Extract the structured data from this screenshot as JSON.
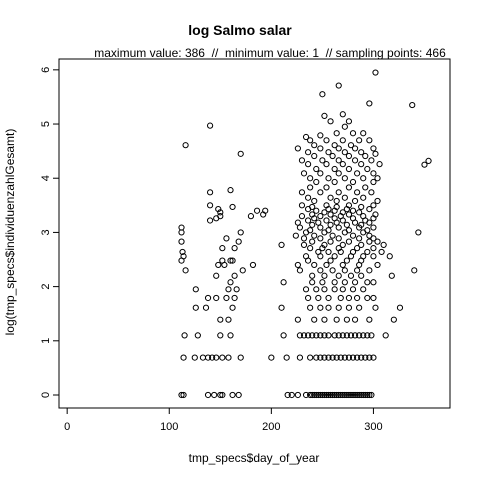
{
  "chart_data": {
    "type": "scatter",
    "title": "log Salmo salar",
    "subtitle": "maximum value: 386  //  minimum value: 1  // sampling points: 466",
    "xlabel": "tmp_specs$day_of_year",
    "ylabel": "log(tmp_specs$individuenzahlGesamt)",
    "xlim": [
      -8,
      375
    ],
    "ylim": [
      -0.24,
      6.2
    ],
    "x_ticks": [
      0,
      100,
      200,
      300
    ],
    "y_ticks": [
      0,
      1,
      2,
      3,
      4,
      5,
      6
    ],
    "grid": false,
    "marker": "open-circle",
    "color": "#000000",
    "points": [
      [
        112,
        0
      ],
      [
        114,
        0
      ],
      [
        138,
        0
      ],
      [
        144,
        0
      ],
      [
        150,
        0
      ],
      [
        152,
        0
      ],
      [
        162,
        0
      ],
      [
        168,
        0
      ],
      [
        216,
        0
      ],
      [
        220,
        0
      ],
      [
        226,
        0
      ],
      [
        234,
        0
      ],
      [
        238,
        0
      ],
      [
        240,
        0
      ],
      [
        242,
        0
      ],
      [
        244,
        0
      ],
      [
        246,
        0
      ],
      [
        248,
        0
      ],
      [
        250,
        0
      ],
      [
        252,
        0
      ],
      [
        254,
        0
      ],
      [
        256,
        0
      ],
      [
        258,
        0
      ],
      [
        260,
        0
      ],
      [
        262,
        0
      ],
      [
        264,
        0
      ],
      [
        266,
        0
      ],
      [
        268,
        0
      ],
      [
        270,
        0
      ],
      [
        272,
        0
      ],
      [
        274,
        0
      ],
      [
        276,
        0
      ],
      [
        278,
        0
      ],
      [
        280,
        0
      ],
      [
        282,
        0
      ],
      [
        284,
        0
      ],
      [
        286,
        0
      ],
      [
        288,
        0
      ],
      [
        290,
        0
      ],
      [
        292,
        0
      ],
      [
        294,
        0
      ],
      [
        296,
        0
      ],
      [
        298,
        0
      ],
      [
        114,
        0.69
      ],
      [
        125,
        0.69
      ],
      [
        133,
        0.69
      ],
      [
        138,
        0.69
      ],
      [
        142,
        0.69
      ],
      [
        146,
        0.69
      ],
      [
        152,
        0.69
      ],
      [
        158,
        0.69
      ],
      [
        170,
        0.69
      ],
      [
        200,
        0.69
      ],
      [
        215,
        0.69
      ],
      [
        228,
        0.69
      ],
      [
        238,
        0.69
      ],
      [
        244,
        0.69
      ],
      [
        248,
        0.69
      ],
      [
        252,
        0.69
      ],
      [
        256,
        0.69
      ],
      [
        260,
        0.69
      ],
      [
        264,
        0.69
      ],
      [
        268,
        0.69
      ],
      [
        272,
        0.69
      ],
      [
        276,
        0.69
      ],
      [
        280,
        0.69
      ],
      [
        284,
        0.69
      ],
      [
        288,
        0.69
      ],
      [
        292,
        0.69
      ],
      [
        296,
        0.69
      ],
      [
        300,
        0.69
      ],
      [
        115,
        1.1
      ],
      [
        128,
        1.1
      ],
      [
        150,
        1.1
      ],
      [
        160,
        1.1
      ],
      [
        212,
        1.1
      ],
      [
        228,
        1.1
      ],
      [
        232,
        1.1
      ],
      [
        236,
        1.1
      ],
      [
        240,
        1.1
      ],
      [
        244,
        1.1
      ],
      [
        248,
        1.1
      ],
      [
        252,
        1.1
      ],
      [
        256,
        1.1
      ],
      [
        262,
        1.1
      ],
      [
        266,
        1.1
      ],
      [
        270,
        1.1
      ],
      [
        274,
        1.1
      ],
      [
        278,
        1.1
      ],
      [
        282,
        1.1
      ],
      [
        286,
        1.1
      ],
      [
        290,
        1.1
      ],
      [
        294,
        1.1
      ],
      [
        298,
        1.1
      ],
      [
        312,
        1.1
      ],
      [
        150,
        1.39
      ],
      [
        158,
        1.39
      ],
      [
        226,
        1.39
      ],
      [
        242,
        1.39
      ],
      [
        252,
        1.39
      ],
      [
        264,
        1.39
      ],
      [
        274,
        1.39
      ],
      [
        282,
        1.39
      ],
      [
        296,
        1.39
      ],
      [
        320,
        1.39
      ],
      [
        126,
        1.61
      ],
      [
        136,
        1.61
      ],
      [
        162,
        1.61
      ],
      [
        210,
        1.61
      ],
      [
        238,
        1.61
      ],
      [
        248,
        1.61
      ],
      [
        256,
        1.61
      ],
      [
        266,
        1.61
      ],
      [
        276,
        1.61
      ],
      [
        286,
        1.61
      ],
      [
        302,
        1.61
      ],
      [
        326,
        1.61
      ],
      [
        138,
        1.79
      ],
      [
        146,
        1.79
      ],
      [
        156,
        1.79
      ],
      [
        164,
        1.79
      ],
      [
        236,
        1.79
      ],
      [
        246,
        1.79
      ],
      [
        256,
        1.79
      ],
      [
        268,
        1.79
      ],
      [
        276,
        1.79
      ],
      [
        284,
        1.79
      ],
      [
        294,
        1.79
      ],
      [
        300,
        1.79
      ],
      [
        126,
        1.95
      ],
      [
        158,
        1.95
      ],
      [
        166,
        1.95
      ],
      [
        234,
        1.95
      ],
      [
        244,
        1.95
      ],
      [
        252,
        1.95
      ],
      [
        262,
        1.95
      ],
      [
        270,
        1.95
      ],
      [
        280,
        1.95
      ],
      [
        290,
        1.95
      ],
      [
        160,
        2.08
      ],
      [
        212,
        2.08
      ],
      [
        240,
        2.08
      ],
      [
        250,
        2.08
      ],
      [
        262,
        2.08
      ],
      [
        272,
        2.08
      ],
      [
        282,
        2.08
      ],
      [
        294,
        2.08
      ],
      [
        300,
        2.08
      ],
      [
        146,
        2.2
      ],
      [
        164,
        2.2
      ],
      [
        240,
        2.2
      ],
      [
        252,
        2.2
      ],
      [
        266,
        2.2
      ],
      [
        278,
        2.2
      ],
      [
        288,
        2.2
      ],
      [
        318,
        2.2
      ],
      [
        340,
        2.3
      ],
      [
        116,
        2.3
      ],
      [
        172,
        2.3
      ],
      [
        228,
        2.3
      ],
      [
        248,
        2.3
      ],
      [
        260,
        2.3
      ],
      [
        272,
        2.3
      ],
      [
        284,
        2.3
      ],
      [
        296,
        2.3
      ],
      [
        148,
        2.4
      ],
      [
        154,
        2.4
      ],
      [
        182,
        2.4
      ],
      [
        226,
        2.4
      ],
      [
        242,
        2.4
      ],
      [
        254,
        2.4
      ],
      [
        270,
        2.4
      ],
      [
        286,
        2.4
      ],
      [
        304,
        2.4
      ],
      [
        112,
        2.48
      ],
      [
        152,
        2.48
      ],
      [
        160,
        2.48
      ],
      [
        162,
        2.48
      ],
      [
        236,
        2.48
      ],
      [
        258,
        2.48
      ],
      [
        274,
        2.48
      ],
      [
        288,
        2.48
      ],
      [
        114,
        2.56
      ],
      [
        234,
        2.56
      ],
      [
        248,
        2.56
      ],
      [
        262,
        2.56
      ],
      [
        278,
        2.56
      ],
      [
        290,
        2.56
      ],
      [
        300,
        2.56
      ],
      [
        316,
        2.56
      ],
      [
        113,
        2.64
      ],
      [
        246,
        2.64
      ],
      [
        256,
        2.64
      ],
      [
        268,
        2.64
      ],
      [
        280,
        2.64
      ],
      [
        294,
        2.64
      ],
      [
        308,
        2.64
      ],
      [
        152,
        2.71
      ],
      [
        164,
        2.71
      ],
      [
        238,
        2.71
      ],
      [
        250,
        2.71
      ],
      [
        266,
        2.71
      ],
      [
        284,
        2.71
      ],
      [
        300,
        2.71
      ],
      [
        210,
        2.77
      ],
      [
        232,
        2.77
      ],
      [
        252,
        2.77
      ],
      [
        270,
        2.77
      ],
      [
        288,
        2.77
      ],
      [
        310,
        2.77
      ],
      [
        112,
        2.83
      ],
      [
        168,
        2.83
      ],
      [
        240,
        2.83
      ],
      [
        258,
        2.83
      ],
      [
        276,
        2.83
      ],
      [
        296,
        2.83
      ],
      [
        304,
        2.83
      ],
      [
        156,
        2.89
      ],
      [
        232,
        2.89
      ],
      [
        248,
        2.89
      ],
      [
        266,
        2.89
      ],
      [
        286,
        2.89
      ],
      [
        300,
        2.89
      ],
      [
        224,
        2.94
      ],
      [
        242,
        2.94
      ],
      [
        260,
        2.94
      ],
      [
        280,
        2.94
      ],
      [
        296,
        2.94
      ],
      [
        112,
        3.0
      ],
      [
        170,
        3.0
      ],
      [
        234,
        3.0
      ],
      [
        252,
        3.0
      ],
      [
        272,
        3.0
      ],
      [
        290,
        3.0
      ],
      [
        344,
        3.0
      ],
      [
        238,
        3.04
      ],
      [
        256,
        3.04
      ],
      [
        276,
        3.04
      ],
      [
        294,
        3.04
      ],
      [
        112,
        3.09
      ],
      [
        228,
        3.09
      ],
      [
        248,
        3.09
      ],
      [
        266,
        3.09
      ],
      [
        286,
        3.09
      ],
      [
        300,
        3.09
      ],
      [
        240,
        3.14
      ],
      [
        258,
        3.14
      ],
      [
        274,
        3.14
      ],
      [
        288,
        3.14
      ],
      [
        226,
        3.18
      ],
      [
        246,
        3.18
      ],
      [
        264,
        3.18
      ],
      [
        282,
        3.18
      ],
      [
        296,
        3.18
      ],
      [
        140,
        3.22
      ],
      [
        236,
        3.22
      ],
      [
        254,
        3.22
      ],
      [
        270,
        3.22
      ],
      [
        292,
        3.22
      ],
      [
        146,
        3.26
      ],
      [
        242,
        3.26
      ],
      [
        262,
        3.26
      ],
      [
        280,
        3.26
      ],
      [
        300,
        3.26
      ],
      [
        150,
        3.3
      ],
      [
        180,
        3.3
      ],
      [
        230,
        3.3
      ],
      [
        248,
        3.3
      ],
      [
        268,
        3.3
      ],
      [
        290,
        3.3
      ],
      [
        192,
        3.33
      ],
      [
        240,
        3.33
      ],
      [
        258,
        3.33
      ],
      [
        276,
        3.33
      ],
      [
        302,
        3.33
      ],
      [
        150,
        3.37
      ],
      [
        252,
        3.37
      ],
      [
        270,
        3.37
      ],
      [
        286,
        3.37
      ],
      [
        186,
        3.4
      ],
      [
        194,
        3.4
      ],
      [
        244,
        3.4
      ],
      [
        262,
        3.4
      ],
      [
        280,
        3.4
      ],
      [
        148,
        3.43
      ],
      [
        236,
        3.43
      ],
      [
        256,
        3.43
      ],
      [
        274,
        3.43
      ],
      [
        296,
        3.43
      ],
      [
        162,
        3.47
      ],
      [
        240,
        3.47
      ],
      [
        264,
        3.47
      ],
      [
        288,
        3.47
      ],
      [
        140,
        3.5
      ],
      [
        230,
        3.5
      ],
      [
        254,
        3.5
      ],
      [
        276,
        3.5
      ],
      [
        300,
        3.5
      ],
      [
        242,
        3.58
      ],
      [
        264,
        3.58
      ],
      [
        282,
        3.58
      ],
      [
        304,
        3.58
      ],
      [
        236,
        3.64
      ],
      [
        258,
        3.64
      ],
      [
        272,
        3.64
      ],
      [
        290,
        3.64
      ],
      [
        140,
        3.74
      ],
      [
        160,
        3.78
      ],
      [
        230,
        3.74
      ],
      [
        248,
        3.74
      ],
      [
        266,
        3.74
      ],
      [
        284,
        3.74
      ],
      [
        298,
        3.74
      ],
      [
        238,
        3.83
      ],
      [
        254,
        3.83
      ],
      [
        276,
        3.83
      ],
      [
        292,
        3.83
      ],
      [
        244,
        3.93
      ],
      [
        262,
        3.93
      ],
      [
        280,
        3.93
      ],
      [
        300,
        3.93
      ],
      [
        238,
        4.0
      ],
      [
        256,
        4.0
      ],
      [
        272,
        4.0
      ],
      [
        290,
        4.0
      ],
      [
        304,
        4.0
      ],
      [
        232,
        4.09
      ],
      [
        248,
        4.09
      ],
      [
        266,
        4.09
      ],
      [
        284,
        4.09
      ],
      [
        300,
        4.09
      ],
      [
        244,
        4.17
      ],
      [
        262,
        4.17
      ],
      [
        276,
        4.17
      ],
      [
        294,
        4.17
      ],
      [
        350,
        4.25
      ],
      [
        236,
        4.26
      ],
      [
        254,
        4.26
      ],
      [
        270,
        4.26
      ],
      [
        288,
        4.26
      ],
      [
        306,
        4.26
      ],
      [
        354,
        4.32
      ],
      [
        230,
        4.33
      ],
      [
        250,
        4.33
      ],
      [
        266,
        4.33
      ],
      [
        282,
        4.33
      ],
      [
        298,
        4.33
      ],
      [
        242,
        4.41
      ],
      [
        260,
        4.41
      ],
      [
        276,
        4.41
      ],
      [
        292,
        4.41
      ],
      [
        302,
        4.45
      ],
      [
        170,
        4.45
      ],
      [
        236,
        4.48
      ],
      [
        256,
        4.48
      ],
      [
        272,
        4.48
      ],
      [
        288,
        4.48
      ],
      [
        226,
        4.55
      ],
      [
        248,
        4.55
      ],
      [
        266,
        4.55
      ],
      [
        282,
        4.55
      ],
      [
        300,
        4.55
      ],
      [
        116,
        4.61
      ],
      [
        242,
        4.61
      ],
      [
        262,
        4.61
      ],
      [
        278,
        4.61
      ],
      [
        238,
        4.7
      ],
      [
        254,
        4.7
      ],
      [
        270,
        4.7
      ],
      [
        286,
        4.7
      ],
      [
        296,
        4.7
      ],
      [
        234,
        4.76
      ],
      [
        248,
        4.79
      ],
      [
        264,
        4.83
      ],
      [
        280,
        4.83
      ],
      [
        290,
        4.83
      ],
      [
        140,
        4.97
      ],
      [
        272,
        4.95
      ],
      [
        258,
        5.05
      ],
      [
        276,
        5.05
      ],
      [
        252,
        5.15
      ],
      [
        270,
        5.18
      ],
      [
        296,
        5.38
      ],
      [
        338,
        5.35
      ],
      [
        250,
        5.55
      ],
      [
        266,
        5.71
      ],
      [
        302,
        5.95
      ]
    ]
  }
}
